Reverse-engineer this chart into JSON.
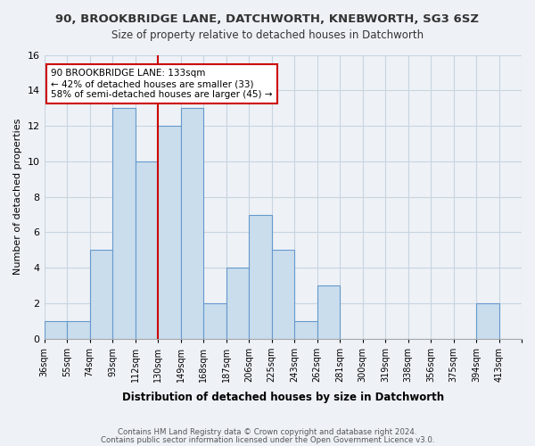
{
  "title_line1": "90, BROOKBRIDGE LANE, DATCHWORTH, KNEBWORTH, SG3 6SZ",
  "title_line2": "Size of property relative to detached houses in Datchworth",
  "xlabel": "Distribution of detached houses by size in Datchworth",
  "ylabel": "Number of detached properties",
  "bin_labels": [
    "36sqm",
    "55sqm",
    "74sqm",
    "93sqm",
    "112sqm",
    "130sqm",
    "149sqm",
    "168sqm",
    "187sqm",
    "206sqm",
    "225sqm",
    "243sqm",
    "262sqm",
    "281sqm",
    "300sqm",
    "319sqm",
    "338sqm",
    "356sqm",
    "375sqm",
    "394sqm",
    "413sqm"
  ],
  "counts": [
    1,
    1,
    5,
    13,
    10,
    12,
    13,
    2,
    4,
    7,
    5,
    1,
    3,
    0,
    0,
    0,
    0,
    0,
    0,
    2,
    0
  ],
  "bar_color": "#c9dded",
  "bar_edge_color": "#6699cc",
  "reference_line_x": 5,
  "reference_line_label": "90 BROOKBRIDGE LANE: 133sqm",
  "annotation_line1": "← 42% of detached houses are smaller (33)",
  "annotation_line2": "58% of semi-detached houses are larger (45) →",
  "annotation_box_facecolor": "#ffffff",
  "annotation_box_edgecolor": "#cc0000",
  "ref_line_color": "#cc0000",
  "ylim": [
    0,
    16
  ],
  "yticks": [
    0,
    2,
    4,
    6,
    8,
    10,
    12,
    14,
    16
  ],
  "footer_line1": "Contains HM Land Registry data © Crown copyright and database right 2024.",
  "footer_line2": "Contains public sector information licensed under the Open Government Licence v3.0.",
  "bg_color": "#eef2f7",
  "grid_color": "#c8d4e0"
}
